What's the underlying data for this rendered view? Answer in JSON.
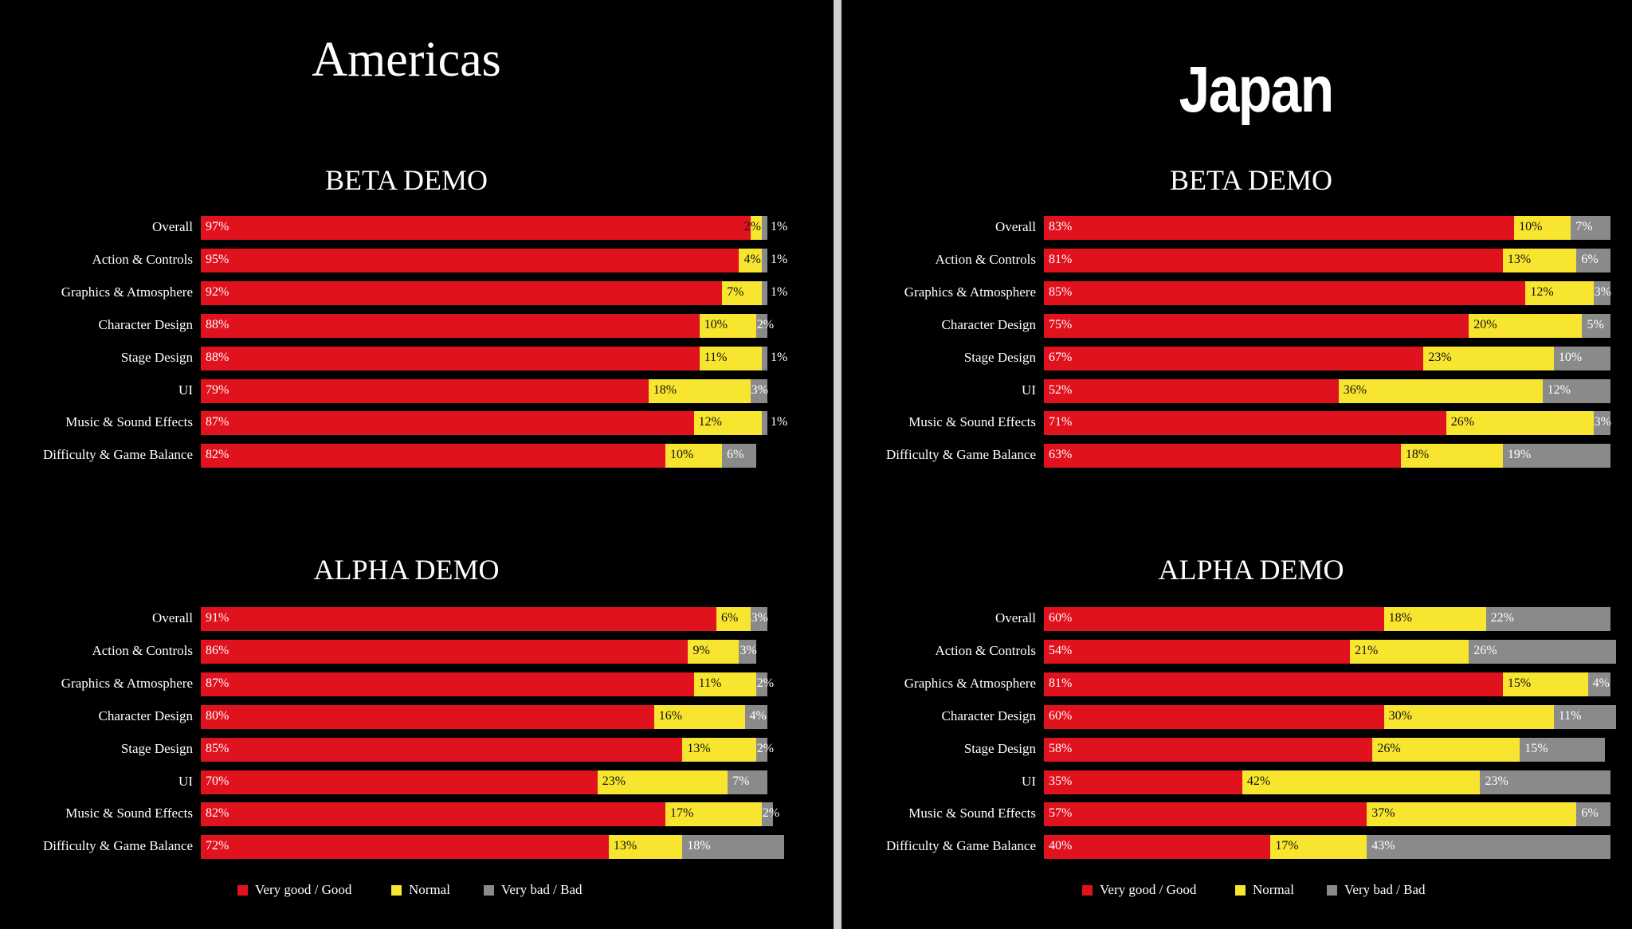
{
  "colors": {
    "good": "#e0121e",
    "normal": "#f8e52f",
    "bad": "#8a8a8a"
  },
  "chart_data": [
    {
      "type": "bar",
      "orientation": "horizontal",
      "stacked": true,
      "title": "Americas",
      "xlim": [
        0,
        100
      ],
      "categories": [
        "Overall",
        "Action & Controls",
        "Graphics & Atmosphere",
        "Character Design",
        "Stage Design",
        "UI",
        "Music & Sound Effects",
        "Difficulty & Game Balance"
      ],
      "legend": [
        "Very good / Good",
        "Normal",
        "Very bad / Bad"
      ],
      "legend_position": "bottom",
      "subcharts": [
        {
          "title": "BETA DEMO",
          "series": [
            {
              "name": "Very good / Good",
              "values": [
                97,
                95,
                92,
                88,
                88,
                79,
                87,
                82
              ]
            },
            {
              "name": "Normal",
              "values": [
                2,
                4,
                7,
                10,
                11,
                18,
                12,
                10
              ]
            },
            {
              "name": "Very bad / Bad",
              "values": [
                1,
                1,
                1,
                2,
                1,
                3,
                1,
                6
              ]
            }
          ]
        },
        {
          "title": "ALPHA DEMO",
          "series": [
            {
              "name": "Very good / Good",
              "values": [
                91,
                86,
                87,
                80,
                85,
                70,
                82,
                72
              ]
            },
            {
              "name": "Normal",
              "values": [
                6,
                9,
                11,
                16,
                13,
                23,
                17,
                13
              ]
            },
            {
              "name": "Very bad / Bad",
              "values": [
                3,
                3,
                2,
                4,
                2,
                7,
                2,
                18
              ]
            }
          ]
        }
      ]
    },
    {
      "type": "bar",
      "orientation": "horizontal",
      "stacked": true,
      "title": "Japan",
      "xlim": [
        0,
        100
      ],
      "categories": [
        "Overall",
        "Action & Controls",
        "Graphics & Atmosphere",
        "Character Design",
        "Stage Design",
        "UI",
        "Music & Sound Effects",
        "Difficulty & Game Balance"
      ],
      "legend": [
        "Very good / Good",
        "Normal",
        "Very bad / Bad"
      ],
      "legend_position": "bottom",
      "subcharts": [
        {
          "title": "BETA DEMO",
          "series": [
            {
              "name": "Very good / Good",
              "values": [
                83,
                81,
                85,
                75,
                67,
                52,
                71,
                63
              ]
            },
            {
              "name": "Normal",
              "values": [
                10,
                13,
                12,
                20,
                23,
                36,
                26,
                18
              ]
            },
            {
              "name": "Very bad / Bad",
              "values": [
                7,
                6,
                3,
                5,
                10,
                12,
                3,
                19
              ]
            }
          ]
        },
        {
          "title": "ALPHA DEMO",
          "series": [
            {
              "name": "Very good / Good",
              "values": [
                60,
                54,
                81,
                60,
                58,
                35,
                57,
                40
              ]
            },
            {
              "name": "Normal",
              "values": [
                18,
                21,
                15,
                30,
                26,
                42,
                37,
                17
              ]
            },
            {
              "name": "Very bad / Bad",
              "values": [
                22,
                26,
                4,
                11,
                15,
                23,
                6,
                43
              ]
            }
          ]
        }
      ]
    }
  ]
}
